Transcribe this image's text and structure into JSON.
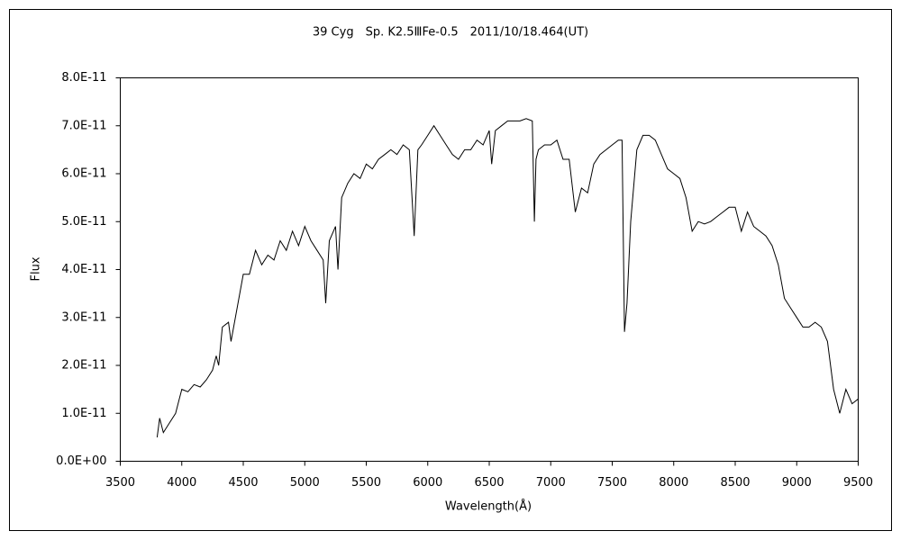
{
  "chart_data": {
    "type": "line",
    "title": "39 Cyg　Sp. K2.5ⅢFe-0.5　2011/10/18.464(UT)",
    "x_label": "Wavelength(Å)",
    "y_label": "Flux",
    "xlim": [
      3500,
      9500
    ],
    "xticks": [
      3500,
      4000,
      4500,
      5000,
      5500,
      6000,
      6500,
      7000,
      7500,
      8000,
      8500,
      9000,
      9500
    ],
    "ylim": [
      0,
      8e-11
    ],
    "yticks": [
      {
        "value": 0,
        "label": "0.0E+00"
      },
      {
        "value": 1e-11,
        "label": "1.0E-11"
      },
      {
        "value": 2e-11,
        "label": "2.0E-11"
      },
      {
        "value": 3e-11,
        "label": "3.0E-11"
      },
      {
        "value": 4e-11,
        "label": "4.0E-11"
      },
      {
        "value": 5e-11,
        "label": "5.0E-11"
      },
      {
        "value": 6e-11,
        "label": "6.0E-11"
      },
      {
        "value": 7e-11,
        "label": "7.0E-11"
      },
      {
        "value": 8e-11,
        "label": "8.0E-11"
      }
    ],
    "x": [
      3800,
      3820,
      3850,
      3900,
      3950,
      3980,
      4000,
      4050,
      4100,
      4150,
      4200,
      4250,
      4280,
      4300,
      4330,
      4380,
      4400,
      4450,
      4500,
      4550,
      4600,
      4650,
      4700,
      4750,
      4800,
      4850,
      4900,
      4950,
      5000,
      5050,
      5100,
      5150,
      5170,
      5200,
      5250,
      5270,
      5300,
      5350,
      5400,
      5450,
      5500,
      5550,
      5600,
      5650,
      5700,
      5750,
      5800,
      5850,
      5890,
      5920,
      5950,
      6000,
      6050,
      6100,
      6150,
      6200,
      6250,
      6300,
      6350,
      6400,
      6450,
      6500,
      6520,
      6550,
      6600,
      6650,
      6700,
      6750,
      6800,
      6850,
      6867,
      6880,
      6900,
      6950,
      7000,
      7050,
      7100,
      7150,
      7200,
      7250,
      7300,
      7350,
      7400,
      7450,
      7500,
      7550,
      7580,
      7600,
      7620,
      7650,
      7700,
      7750,
      7800,
      7850,
      7900,
      7950,
      8000,
      8050,
      8100,
      8150,
      8200,
      8250,
      8300,
      8350,
      8400,
      8450,
      8500,
      8550,
      8600,
      8650,
      8700,
      8750,
      8800,
      8850,
      8900,
      8950,
      9000,
      9050,
      9100,
      9150,
      9200,
      9250,
      9300,
      9350,
      9400,
      9450,
      9500
    ],
    "series": [
      {
        "color": "#000000",
        "values": [
          5e-12,
          9e-12,
          6e-12,
          8e-12,
          1e-11,
          1.3e-11,
          1.5e-11,
          1.45e-11,
          1.6e-11,
          1.55e-11,
          1.7e-11,
          1.9e-11,
          2.2e-11,
          2e-11,
          2.8e-11,
          2.9e-11,
          2.5e-11,
          3.2e-11,
          3.9e-11,
          3.9e-11,
          4.4e-11,
          4.1e-11,
          4.3e-11,
          4.2e-11,
          4.6e-11,
          4.4e-11,
          4.8e-11,
          4.5e-11,
          4.9e-11,
          4.6e-11,
          4.4e-11,
          4.2e-11,
          3.3e-11,
          4.6e-11,
          4.9e-11,
          4e-11,
          5.5e-11,
          5.8e-11,
          6e-11,
          5.9e-11,
          6.2e-11,
          6.1e-11,
          6.3e-11,
          6.4e-11,
          6.5e-11,
          6.4e-11,
          6.6e-11,
          6.5e-11,
          4.7e-11,
          6.5e-11,
          6.6e-11,
          6.8e-11,
          7e-11,
          6.8e-11,
          6.6e-11,
          6.4e-11,
          6.3e-11,
          6.5e-11,
          6.5e-11,
          6.7e-11,
          6.6e-11,
          6.9e-11,
          6.2e-11,
          6.9e-11,
          7e-11,
          7.1e-11,
          7.1e-11,
          7.1e-11,
          7.15e-11,
          7.1e-11,
          5e-11,
          6.3e-11,
          6.5e-11,
          6.6e-11,
          6.6e-11,
          6.7e-11,
          6.3e-11,
          6.3e-11,
          5.2e-11,
          5.7e-11,
          5.6e-11,
          6.2e-11,
          6.4e-11,
          6.5e-11,
          6.6e-11,
          6.7e-11,
          6.7e-11,
          2.7e-11,
          3.3e-11,
          5e-11,
          6.5e-11,
          6.8e-11,
          6.8e-11,
          6.7e-11,
          6.4e-11,
          6.1e-11,
          6e-11,
          5.9e-11,
          5.5e-11,
          4.8e-11,
          5e-11,
          4.95e-11,
          5e-11,
          5.1e-11,
          5.2e-11,
          5.3e-11,
          5.3e-11,
          4.8e-11,
          5.2e-11,
          4.9e-11,
          4.8e-11,
          4.7e-11,
          4.5e-11,
          4.1e-11,
          3.4e-11,
          3.2e-11,
          3e-11,
          2.8e-11,
          2.8e-11,
          2.9e-11,
          2.8e-11,
          2.5e-11,
          1.5e-11,
          1e-11,
          1.5e-11,
          1.2e-11,
          1.3e-11
        ]
      }
    ]
  }
}
